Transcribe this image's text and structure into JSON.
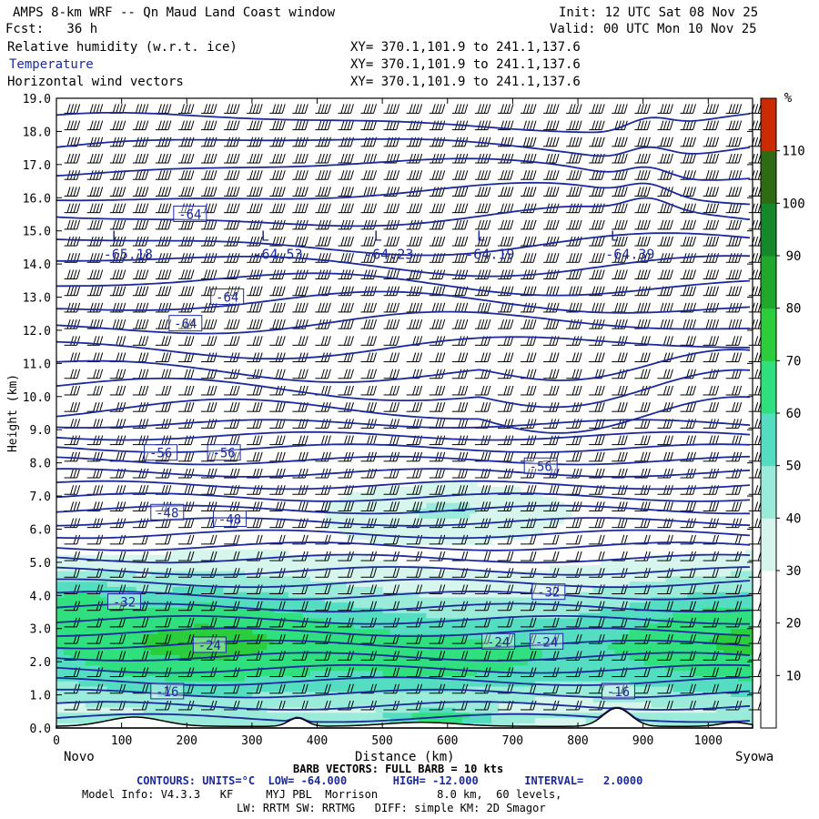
{
  "header": {
    "title": "AMPS 8-km WRF -- Qn Maud Land Coast window",
    "init": "Init: 12 UTC Sat 08 Nov 25",
    "fcst": "Fcst:   36 h",
    "valid": "Valid: 00 UTC Mon 10 Nov 25",
    "fields": [
      {
        "name": "Relative humidity (w.r.t. ice)",
        "xy": "XY= 370.1,101.9 to 241.1,137.6"
      },
      {
        "name": "Temperature",
        "xy": "XY= 370.1,101.9 to 241.1,137.6"
      },
      {
        "name": "Horizontal wind vectors",
        "xy": "XY= 370.1,101.9 to 241.1,137.6"
      }
    ]
  },
  "footer": {
    "left_station": "Novo",
    "right_station": "Syowa",
    "barb": "BARB VECTORS: FULL BARB = 10 kts",
    "contours": "CONTOURS: UNITS=°C  LOW= -64.000       HIGH= -12.000       INTERVAL=   2.0000",
    "model1": "Model Info: V4.3.3   KF     MYJ PBL  Morrison         8.0 km,  60 levels,",
    "model2": "LW: RRTM SW: RRTMG   DIFF: simple KM: 2D Smagor"
  },
  "colors": {
    "temperature_contour": "#1c2a9a",
    "rh_bins": [
      "#ffffff",
      "#ffffff",
      "#ffffff",
      "#d6f5ec",
      "#9bebdb",
      "#55ddc2",
      "#30e07e",
      "#2ccd3c",
      "#20a82c",
      "#14882a",
      "#2e6b12",
      "#cc2a00"
    ]
  },
  "chart_data": {
    "type": "heatmap",
    "xlabel": "Distance (km)",
    "ylabel": "Height (km)",
    "xlim": [
      0,
      1068
    ],
    "ylim": [
      0,
      19
    ],
    "x_ticks": [
      0,
      100,
      200,
      300,
      400,
      500,
      600,
      700,
      800,
      900,
      1000
    ],
    "y_ticks": [
      0,
      1,
      2,
      3,
      4,
      5,
      6,
      7,
      8,
      9,
      10,
      11,
      12,
      13,
      14,
      15,
      16,
      17,
      18,
      19
    ],
    "colorbar": {
      "unit": "%",
      "labels": [
        10,
        20,
        30,
        40,
        50,
        60,
        70,
        80,
        90,
        100,
        110
      ],
      "levels": [
        0,
        10,
        20,
        30,
        40,
        50,
        60,
        70,
        80,
        90,
        100,
        110,
        120
      ]
    },
    "contour_labels": [
      {
        "text": "-64",
        "x": 205,
        "y": 15.5
      },
      {
        "text": "-64",
        "x": 262,
        "y": 13.0
      },
      {
        "text": "-64",
        "x": 198,
        "y": 12.2
      },
      {
        "text": "-56",
        "x": 160,
        "y": 8.3
      },
      {
        "text": "-56",
        "x": 257,
        "y": 8.3
      },
      {
        "text": "-56",
        "x": 743,
        "y": 7.9
      },
      {
        "text": "-48",
        "x": 170,
        "y": 6.5
      },
      {
        "text": "-48",
        "x": 266,
        "y": 6.3
      },
      {
        "text": "-32",
        "x": 104,
        "y": 3.8
      },
      {
        "text": "-32",
        "x": 755,
        "y": 4.1
      },
      {
        "text": "-24",
        "x": 235,
        "y": 2.5
      },
      {
        "text": "-24",
        "x": 678,
        "y": 2.6
      },
      {
        "text": "-24",
        "x": 752,
        "y": 2.6
      },
      {
        "text": "-16",
        "x": 170,
        "y": 1.1
      },
      {
        "text": "-16",
        "x": 862,
        "y": 1.1
      }
    ],
    "extrema": [
      {
        "mark": "L",
        "value": "-65.18",
        "x": 85,
        "y": 14.7,
        "vx": 110
      },
      {
        "mark": "L",
        "value": "-64.53",
        "x": 314,
        "y": 14.7,
        "vx": 340
      },
      {
        "mark": "L",
        "value": "-64.23",
        "x": 487,
        "y": 14.7,
        "vx": 510
      },
      {
        "mark": "L",
        "value": "-64.19",
        "x": 645,
        "y": 14.7,
        "vx": 665
      },
      {
        "mark": "L",
        "value": "-64.39",
        "x": 850,
        "y": 14.7,
        "vx": 880
      }
    ]
  }
}
